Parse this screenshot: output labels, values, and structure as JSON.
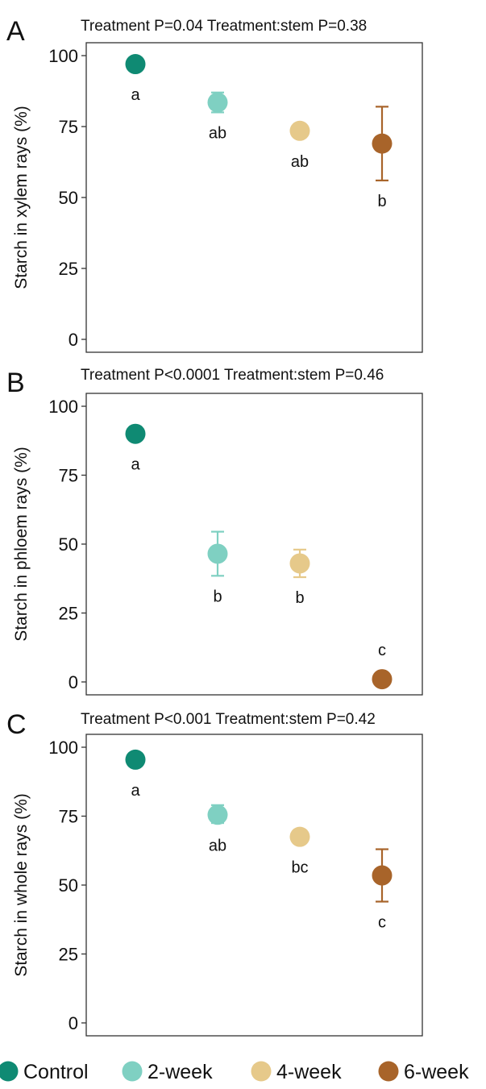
{
  "legend": {
    "position": "bottom",
    "items": [
      {
        "label": "Control",
        "color": "#0f8a73"
      },
      {
        "label": "2-week",
        "color": "#7fd0c2"
      },
      {
        "label": "4-week",
        "color": "#e6c98a"
      },
      {
        "label": "6-week",
        "color": "#a8642a"
      }
    ]
  },
  "chart_data": [
    {
      "type": "scatter",
      "panel_label": "A",
      "subtitle": "Treatment  P=0.04  Treatment:stem  P=0.38",
      "ylabel": "Starch in xylem rays (%)",
      "ylim": [
        0,
        100
      ],
      "yticks": [
        "0",
        "25",
        "50",
        "75",
        "100"
      ],
      "categories": [
        "Control",
        "2-week",
        "4-week",
        "6-week"
      ],
      "values": [
        97,
        83.5,
        73.5,
        69
      ],
      "error": [
        {
          "low": 96,
          "high": 98
        },
        {
          "low": 80,
          "high": 87
        },
        {
          "low": 72,
          "high": 75
        },
        {
          "low": 56,
          "high": 82
        }
      ],
      "letters": [
        "a",
        "ab",
        "ab",
        "b"
      ],
      "grid": false
    },
    {
      "type": "scatter",
      "panel_label": "B",
      "subtitle": "Treatment  P<0.0001  Treatment:stem  P=0.46",
      "ylabel": "Starch in phloem rays (%)",
      "ylim": [
        0,
        100
      ],
      "yticks": [
        "0",
        "25",
        "50",
        "75",
        "100"
      ],
      "categories": [
        "Control",
        "2-week",
        "4-week",
        "6-week"
      ],
      "values": [
        90,
        46.5,
        43,
        1
      ],
      "error": [
        {
          "low": 88,
          "high": 92
        },
        {
          "low": 38.5,
          "high": 54.5
        },
        {
          "low": 38,
          "high": 48
        },
        {
          "low": 0,
          "high": 2
        }
      ],
      "letters": [
        "a",
        "b",
        "b",
        "c"
      ],
      "grid": false
    },
    {
      "type": "scatter",
      "panel_label": "C",
      "subtitle": "Treatment  P<0.001  Treatment:stem  P=0.42",
      "ylabel": "Starch in whole rays (%)",
      "ylim": [
        0,
        100
      ],
      "yticks": [
        "0",
        "25",
        "50",
        "75",
        "100"
      ],
      "categories": [
        "Control",
        "2-week",
        "4-week",
        "6-week"
      ],
      "values": [
        95.5,
        75.5,
        67.5,
        53.5
      ],
      "error": [
        {
          "low": 94.5,
          "high": 96.5
        },
        {
          "low": 72.5,
          "high": 79
        },
        {
          "low": 66,
          "high": 69
        },
        {
          "low": 44,
          "high": 63
        }
      ],
      "letters": [
        "a",
        "ab",
        "bc",
        "c"
      ],
      "grid": false
    }
  ]
}
